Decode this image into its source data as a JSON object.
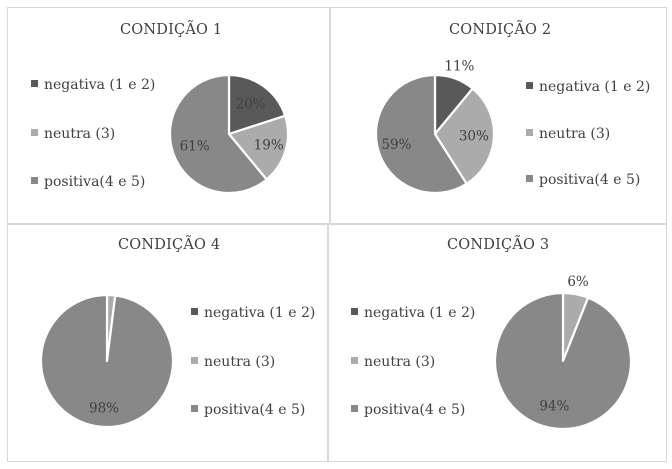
{
  "colors": {
    "negativa": "#595959",
    "neutra": "#ababab",
    "positiva": "#888888",
    "border": "#d9d9d9",
    "text": "#404040"
  },
  "legend_labels": [
    "negativa (1 e 2)",
    "neutra (3)",
    "positiva(4 e 5)"
  ],
  "chart_data": [
    {
      "type": "pie",
      "title": "CONDIÇÃO 1",
      "categories": [
        "negativa (1 e 2)",
        "neutra (3)",
        "positiva(4 e 5)"
      ],
      "values": [
        20,
        19,
        61
      ],
      "labels": [
        "20%",
        "19%",
        "61%"
      ],
      "legend": "left"
    },
    {
      "type": "pie",
      "title": "CONDIÇÃO 2",
      "categories": [
        "negativa (1 e 2)",
        "neutra (3)",
        "positiva(4 e 5)"
      ],
      "values": [
        11,
        30,
        59
      ],
      "labels": [
        "11%",
        "30%",
        "59%"
      ],
      "legend": "right"
    },
    {
      "type": "pie",
      "title": "CONDIÇÃO 4",
      "categories": [
        "negativa (1 e 2)",
        "neutra (3)",
        "positiva(4 e 5)"
      ],
      "values": [
        0,
        2,
        98
      ],
      "labels": [
        "",
        "",
        "98%"
      ],
      "legend": "right"
    },
    {
      "type": "pie",
      "title": "CONDIÇÃO 3",
      "categories": [
        "negativa (1 e 2)",
        "neutra (3)",
        "positiva(4 e 5)"
      ],
      "values": [
        0,
        6,
        94
      ],
      "labels": [
        "",
        "6%",
        "94%"
      ],
      "legend": "left"
    }
  ]
}
